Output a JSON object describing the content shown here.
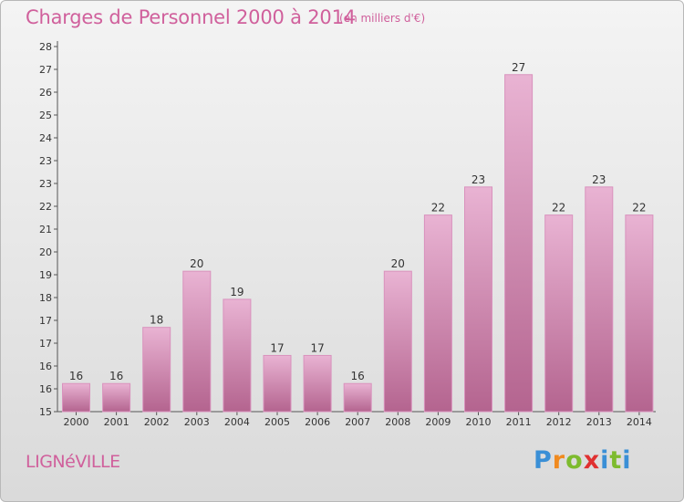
{
  "title": "Charges de Personnel 2000 à 2014",
  "subtitle": "(en milliers d'€)",
  "city": "LIGNéVILLE",
  "brand": {
    "letters": [
      "P",
      "r",
      "o",
      "x",
      "i",
      "t",
      "i"
    ],
    "colors": [
      "#3a8fd6",
      "#f08a1f",
      "#7dbb2e",
      "#e03030",
      "#3a8fd6",
      "#7dbb2e",
      "#3a8fd6"
    ]
  },
  "colors": {
    "bar": "#cf7eb0",
    "bar_light": "#e9b3d3",
    "bar_dark": "#b4648f",
    "text": "#d0609c"
  },
  "chart_data": {
    "type": "bar",
    "categories": [
      "2000",
      "2001",
      "2002",
      "2003",
      "2004",
      "2005",
      "2006",
      "2007",
      "2008",
      "2009",
      "2010",
      "2011",
      "2012",
      "2013",
      "2014"
    ],
    "values": [
      16,
      16,
      18,
      20,
      19,
      17,
      17,
      16,
      20,
      22,
      23,
      27,
      22,
      23,
      22
    ],
    "title": "Charges de Personnel 2000 à 2014",
    "xlabel": "",
    "ylabel": "",
    "ylim": [
      15,
      28
    ],
    "yticks": [
      "15",
      "16",
      "16",
      "17",
      "17",
      "18",
      "19",
      "20",
      "21",
      "22",
      "23",
      "23",
      "24",
      "25",
      "26",
      "27",
      "28"
    ],
    "grid": false,
    "legend": "none"
  }
}
